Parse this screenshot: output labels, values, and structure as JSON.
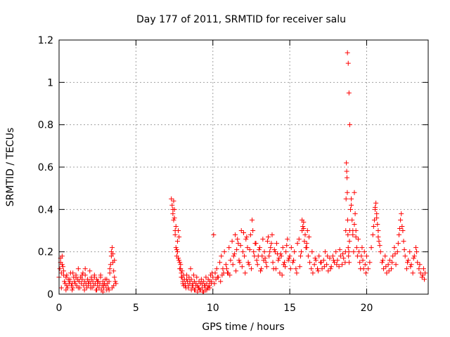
{
  "chart_data": {
    "type": "scatter",
    "title": "Day 177 of 2011, SRMTID for receiver salu",
    "xlabel": "GPS time / hours",
    "ylabel": "SRMTID / TECUs",
    "xlim": [
      0,
      24
    ],
    "ylim": [
      0,
      1.2
    ],
    "xticks": [
      0,
      5,
      10,
      15,
      20
    ],
    "xtick_labels": [
      "0",
      "5",
      "10",
      "15",
      "20"
    ],
    "yticks": [
      0,
      0.2,
      0.4,
      0.6,
      0.8,
      1.0,
      1.2
    ],
    "ytick_labels": [
      "0",
      "0.2",
      "0.4",
      "0.6",
      "0.8",
      "1",
      "1.2"
    ],
    "grid": true,
    "marker": "+",
    "series": [
      {
        "name": "SRMTID",
        "color": "#ff0000",
        "x": [
          0.0,
          0.05,
          0.1,
          0.15,
          0.2,
          0.25,
          0.3,
          0.35,
          0.4,
          0.45,
          0.5,
          0.55,
          0.6,
          0.65,
          0.7,
          0.75,
          0.8,
          0.85,
          0.9,
          0.95,
          1.0,
          1.05,
          1.1,
          1.15,
          1.2,
          1.25,
          1.3,
          1.35,
          1.4,
          1.45,
          1.5,
          1.55,
          1.6,
          1.65,
          1.7,
          1.75,
          1.8,
          1.85,
          1.9,
          1.95,
          2.0,
          2.05,
          2.1,
          2.15,
          2.2,
          2.25,
          2.3,
          2.35,
          2.4,
          2.45,
          2.5,
          2.55,
          2.6,
          2.65,
          2.7,
          2.75,
          2.8,
          2.85,
          2.9,
          2.95,
          3.0,
          3.05,
          3.1,
          3.15,
          3.2,
          3.25,
          3.3,
          3.35,
          3.4,
          3.45,
          3.5,
          3.55,
          3.6,
          3.65,
          3.7,
          0.1,
          0.2,
          0.3,
          0.5,
          0.7,
          0.9,
          1.1,
          1.3,
          1.5,
          1.7,
          1.9,
          2.1,
          2.3,
          2.5,
          2.7,
          2.9,
          3.1,
          3.3,
          3.4,
          3.5,
          3.6,
          0.15,
          0.45,
          0.85,
          1.25,
          1.65,
          2.05,
          2.45,
          2.85,
          3.25,
          3.45,
          3.55,
          7.3,
          7.35,
          7.4,
          7.45,
          7.5,
          7.55,
          7.6,
          7.65,
          7.7,
          7.75,
          7.8,
          7.85,
          7.9,
          7.95,
          8.0,
          8.05,
          8.1,
          8.15,
          8.2,
          8.25,
          8.3,
          8.35,
          8.4,
          8.45,
          8.5,
          8.55,
          8.6,
          8.65,
          8.7,
          8.75,
          8.8,
          8.85,
          8.9,
          8.95,
          9.0,
          9.05,
          9.1,
          9.15,
          9.2,
          9.25,
          9.3,
          9.35,
          9.4,
          9.45,
          9.5,
          9.55,
          9.6,
          9.65,
          9.7,
          9.75,
          9.8,
          9.85,
          9.9,
          9.95,
          10.0,
          7.4,
          7.5,
          7.6,
          7.7,
          7.8,
          7.9,
          8.0,
          8.1,
          8.3,
          8.5,
          8.7,
          8.9,
          9.1,
          9.3,
          9.5,
          9.7,
          9.9,
          7.45,
          7.55,
          7.65,
          7.75,
          7.85,
          7.95,
          8.05,
          8.2,
          8.4,
          8.6,
          8.8,
          9.0,
          9.2,
          9.4,
          9.6,
          9.8,
          10.05,
          10.15,
          10.25,
          10.35,
          10.45,
          10.55,
          10.65,
          10.75,
          10.85,
          10.95,
          11.05,
          11.15,
          11.25,
          11.35,
          11.45,
          11.55,
          11.65,
          11.75,
          11.85,
          11.95,
          12.05,
          12.15,
          12.25,
          12.35,
          12.45,
          12.55,
          12.65,
          12.75,
          12.85,
          12.95,
          13.05,
          13.15,
          13.25,
          13.35,
          13.45,
          13.55,
          13.65,
          13.75,
          13.85,
          13.95,
          14.05,
          14.15,
          14.25,
          14.35,
          14.45,
          14.55,
          14.65,
          14.75,
          14.85,
          14.95,
          10.1,
          10.3,
          10.5,
          10.7,
          10.9,
          11.1,
          11.3,
          11.5,
          11.7,
          11.9,
          12.1,
          12.3,
          12.5,
          12.7,
          12.9,
          13.1,
          13.3,
          13.5,
          13.7,
          13.9,
          14.1,
          14.3,
          14.5,
          14.7,
          14.9,
          10.2,
          10.6,
          11.0,
          11.4,
          11.8,
          12.2,
          12.6,
          13.0,
          13.4,
          13.8,
          14.2,
          14.6,
          11.6,
          12.0,
          12.4,
          12.8,
          13.2,
          13.6,
          14.0,
          14.4,
          14.8,
          15.0,
          15.1,
          15.2,
          15.3,
          15.4,
          15.5,
          15.6,
          15.7,
          15.8,
          15.9,
          16.0,
          16.1,
          16.2,
          16.3,
          16.4,
          16.5,
          16.6,
          16.7,
          16.8,
          16.9,
          17.0,
          17.1,
          17.2,
          17.3,
          17.4,
          17.5,
          17.6,
          17.7,
          17.8,
          17.9,
          18.0,
          18.1,
          18.2,
          18.3,
          18.4,
          18.5,
          15.05,
          15.25,
          15.45,
          15.65,
          15.75,
          15.85,
          15.95,
          16.05,
          16.15,
          16.25,
          16.45,
          16.65,
          16.85,
          17.05,
          17.25,
          17.45,
          17.65,
          17.85,
          18.05,
          18.25,
          18.45,
          15.8,
          15.9,
          16.0,
          16.1,
          18.6,
          18.62,
          18.64,
          18.66,
          18.68,
          18.7,
          18.72,
          18.74,
          18.76,
          18.78,
          18.8,
          18.82,
          18.84,
          18.86,
          18.88,
          18.9,
          18.95,
          19.0,
          19.05,
          19.1,
          19.15,
          19.2,
          19.25,
          19.3,
          19.35,
          19.4,
          19.45,
          19.5,
          19.55,
          19.6,
          19.65,
          19.7,
          19.75,
          19.8,
          19.85,
          19.9,
          19.95,
          18.75,
          18.8,
          18.85,
          18.9,
          19.0,
          19.1,
          19.2,
          19.3,
          20.0,
          20.1,
          20.2,
          20.3,
          20.4,
          20.5,
          20.55,
          20.6,
          20.65,
          20.7,
          20.75,
          20.8,
          20.9,
          21.0,
          21.1,
          21.2,
          21.3,
          21.4,
          21.5,
          21.6,
          21.7,
          21.8,
          21.9,
          22.0,
          22.1,
          22.2,
          22.25,
          22.3,
          22.35,
          22.4,
          22.5,
          22.6,
          22.7,
          22.8,
          22.9,
          23.0,
          23.1,
          23.2,
          23.3,
          23.4,
          23.5,
          23.6,
          23.7,
          23.8,
          20.45,
          20.55,
          20.65,
          20.75,
          20.85,
          21.05,
          21.25,
          21.45,
          21.65,
          21.85,
          22.05,
          22.15,
          22.45,
          22.65,
          22.85,
          23.05,
          23.25,
          23.45,
          23.65,
          23.75
        ],
        "y": [
          0.08,
          0.12,
          0.15,
          0.1,
          0.18,
          0.13,
          0.09,
          0.06,
          0.05,
          0.08,
          0.04,
          0.03,
          0.07,
          0.05,
          0.06,
          0.1,
          0.04,
          0.05,
          0.03,
          0.08,
          0.06,
          0.05,
          0.09,
          0.04,
          0.07,
          0.12,
          0.06,
          0.03,
          0.08,
          0.05,
          0.07,
          0.1,
          0.04,
          0.06,
          0.09,
          0.05,
          0.03,
          0.07,
          0.04,
          0.06,
          0.11,
          0.05,
          0.08,
          0.03,
          0.06,
          0.04,
          0.09,
          0.05,
          0.02,
          0.07,
          0.04,
          0.06,
          0.03,
          0.05,
          0.08,
          0.02,
          0.04,
          0.06,
          0.03,
          0.05,
          0.07,
          0.04,
          0.02,
          0.05,
          0.03,
          0.06,
          0.1,
          0.14,
          0.18,
          0.22,
          0.15,
          0.11,
          0.08,
          0.06,
          0.05,
          0.17,
          0.14,
          0.11,
          0.09,
          0.07,
          0.1,
          0.08,
          0.06,
          0.09,
          0.12,
          0.05,
          0.07,
          0.08,
          0.06,
          0.09,
          0.04,
          0.07,
          0.12,
          0.2,
          0.19,
          0.16,
          0.03,
          0.02,
          0.02,
          0.03,
          0.02,
          0.03,
          0.02,
          0.01,
          0.02,
          0.03,
          0.04,
          0.45,
          0.42,
          0.38,
          0.35,
          0.4,
          0.28,
          0.22,
          0.18,
          0.25,
          0.3,
          0.27,
          0.15,
          0.12,
          0.1,
          0.08,
          0.06,
          0.04,
          0.07,
          0.05,
          0.03,
          0.09,
          0.06,
          0.04,
          0.08,
          0.05,
          0.12,
          0.07,
          0.04,
          0.03,
          0.09,
          0.06,
          0.02,
          0.05,
          0.08,
          0.04,
          0.03,
          0.06,
          0.02,
          0.05,
          0.07,
          0.03,
          0.01,
          0.06,
          0.04,
          0.02,
          0.08,
          0.05,
          0.03,
          0.07,
          0.04,
          0.06,
          0.09,
          0.05,
          0.1,
          0.08,
          0.4,
          0.36,
          0.32,
          0.2,
          0.16,
          0.14,
          0.11,
          0.09,
          0.07,
          0.06,
          0.05,
          0.04,
          0.03,
          0.05,
          0.04,
          0.03,
          0.06,
          0.44,
          0.3,
          0.21,
          0.17,
          0.12,
          0.08,
          0.05,
          0.04,
          0.03,
          0.02,
          0.02,
          0.01,
          0.02,
          0.01,
          0.02,
          0.03,
          0.28,
          0.1,
          0.12,
          0.08,
          0.15,
          0.18,
          0.12,
          0.2,
          0.14,
          0.1,
          0.22,
          0.16,
          0.25,
          0.18,
          0.28,
          0.21,
          0.24,
          0.15,
          0.3,
          0.2,
          0.18,
          0.26,
          0.22,
          0.14,
          0.28,
          0.35,
          0.2,
          0.24,
          0.16,
          0.18,
          0.22,
          0.12,
          0.26,
          0.2,
          0.15,
          0.25,
          0.18,
          0.22,
          0.28,
          0.12,
          0.2,
          0.24,
          0.16,
          0.1,
          0.18,
          0.22,
          0.15,
          0.2,
          0.26,
          0.17,
          0.05,
          0.08,
          0.06,
          0.1,
          0.12,
          0.09,
          0.14,
          0.11,
          0.16,
          0.13,
          0.1,
          0.15,
          0.12,
          0.18,
          0.14,
          0.11,
          0.16,
          0.13,
          0.2,
          0.15,
          0.12,
          0.17,
          0.09,
          0.13,
          0.16,
          0.07,
          0.09,
          0.1,
          0.19,
          0.23,
          0.27,
          0.3,
          0.21,
          0.17,
          0.24,
          0.19,
          0.14,
          0.26,
          0.29,
          0.21,
          0.24,
          0.18,
          0.27,
          0.21,
          0.19,
          0.23,
          0.18,
          0.22,
          0.15,
          0.2,
          0.12,
          0.24,
          0.26,
          0.18,
          0.3,
          0.34,
          0.28,
          0.22,
          0.18,
          0.15,
          0.12,
          0.1,
          0.14,
          0.16,
          0.12,
          0.18,
          0.15,
          0.12,
          0.16,
          0.2,
          0.14,
          0.11,
          0.17,
          0.13,
          0.18,
          0.15,
          0.2,
          0.16,
          0.13,
          0.18,
          0.14,
          0.17,
          0.12,
          0.16,
          0.1,
          0.13,
          0.2,
          0.32,
          0.25,
          0.22,
          0.3,
          0.27,
          0.2,
          0.17,
          0.11,
          0.15,
          0.13,
          0.18,
          0.12,
          0.16,
          0.14,
          0.21,
          0.19,
          0.35,
          0.31,
          0.28,
          0.24,
          0.15,
          0.2,
          0.3,
          0.45,
          0.62,
          0.58,
          0.55,
          0.48,
          0.35,
          0.28,
          0.22,
          0.18,
          0.2,
          0.15,
          0.25,
          0.3,
          0.4,
          0.45,
          0.35,
          0.28,
          0.2,
          0.48,
          0.38,
          0.3,
          0.22,
          0.18,
          0.26,
          0.2,
          0.15,
          0.12,
          0.18,
          0.22,
          0.16,
          0.12,
          0.2,
          0.14,
          0.1,
          1.14,
          1.09,
          0.95,
          0.8,
          0.42,
          0.3,
          0.33,
          0.27,
          0.18,
          0.12,
          0.15,
          0.22,
          0.28,
          0.35,
          0.4,
          0.43,
          0.38,
          0.33,
          0.3,
          0.25,
          0.2,
          0.15,
          0.12,
          0.18,
          0.1,
          0.14,
          0.16,
          0.12,
          0.18,
          0.22,
          0.14,
          0.2,
          0.28,
          0.35,
          0.38,
          0.32,
          0.3,
          0.25,
          0.18,
          0.12,
          0.16,
          0.2,
          0.14,
          0.1,
          0.18,
          0.22,
          0.15,
          0.12,
          0.1,
          0.08,
          0.12,
          0.1,
          0.32,
          0.41,
          0.36,
          0.27,
          0.23,
          0.16,
          0.13,
          0.11,
          0.15,
          0.19,
          0.24,
          0.31,
          0.21,
          0.15,
          0.13,
          0.17,
          0.2,
          0.14,
          0.09,
          0.07
        ]
      }
    ]
  }
}
